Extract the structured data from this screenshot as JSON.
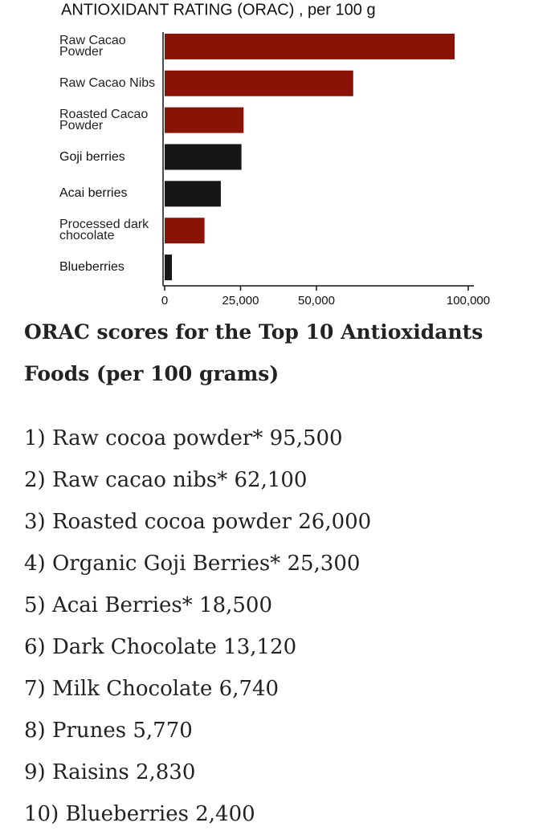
{
  "chart_data": {
    "type": "hbar",
    "title": "ANTIOXIDANT RATING (ORAC) , per 100 g",
    "categories": [
      "Raw Cacao Powder",
      "Raw Cacao Nibs",
      "Roasted Cacao Powder",
      "Goji berries",
      "Acai berries",
      "Processed dark chocolate",
      "Blueberries"
    ],
    "values": [
      95500,
      62100,
      26000,
      25300,
      18500,
      13120,
      2400
    ],
    "colors": [
      "#8a1306",
      "#8a1306",
      "#8a1306",
      "#161616",
      "#161616",
      "#8a1306",
      "#161616"
    ],
    "xlim": [
      0,
      100000
    ],
    "xticks": [
      0,
      {
        "value": 25000,
        "label": "25,000"
      },
      {
        "value": 50000,
        "label": "50,000"
      },
      {
        "value": 100000,
        "label": "100,000"
      }
    ],
    "grid": false
  },
  "heading": "ORAC scores for the Top 10 Antioxidants Foods (per 100 grams)",
  "items": [
    "1) Raw cocoa powder* 95,500",
    "2) Raw cacao nibs* 62,100",
    "3) Roasted cocoa powder 26,000",
    "4) Organic Goji Berries* 25,300",
    "5) Acai Berries* 18,500",
    "6) Dark Chocolate 13,120",
    "7) Milk Chocolate 6,740",
    "8) Prunes 5,770",
    "9) Raisins 2,830",
    "10) Blueberries 2,400"
  ]
}
